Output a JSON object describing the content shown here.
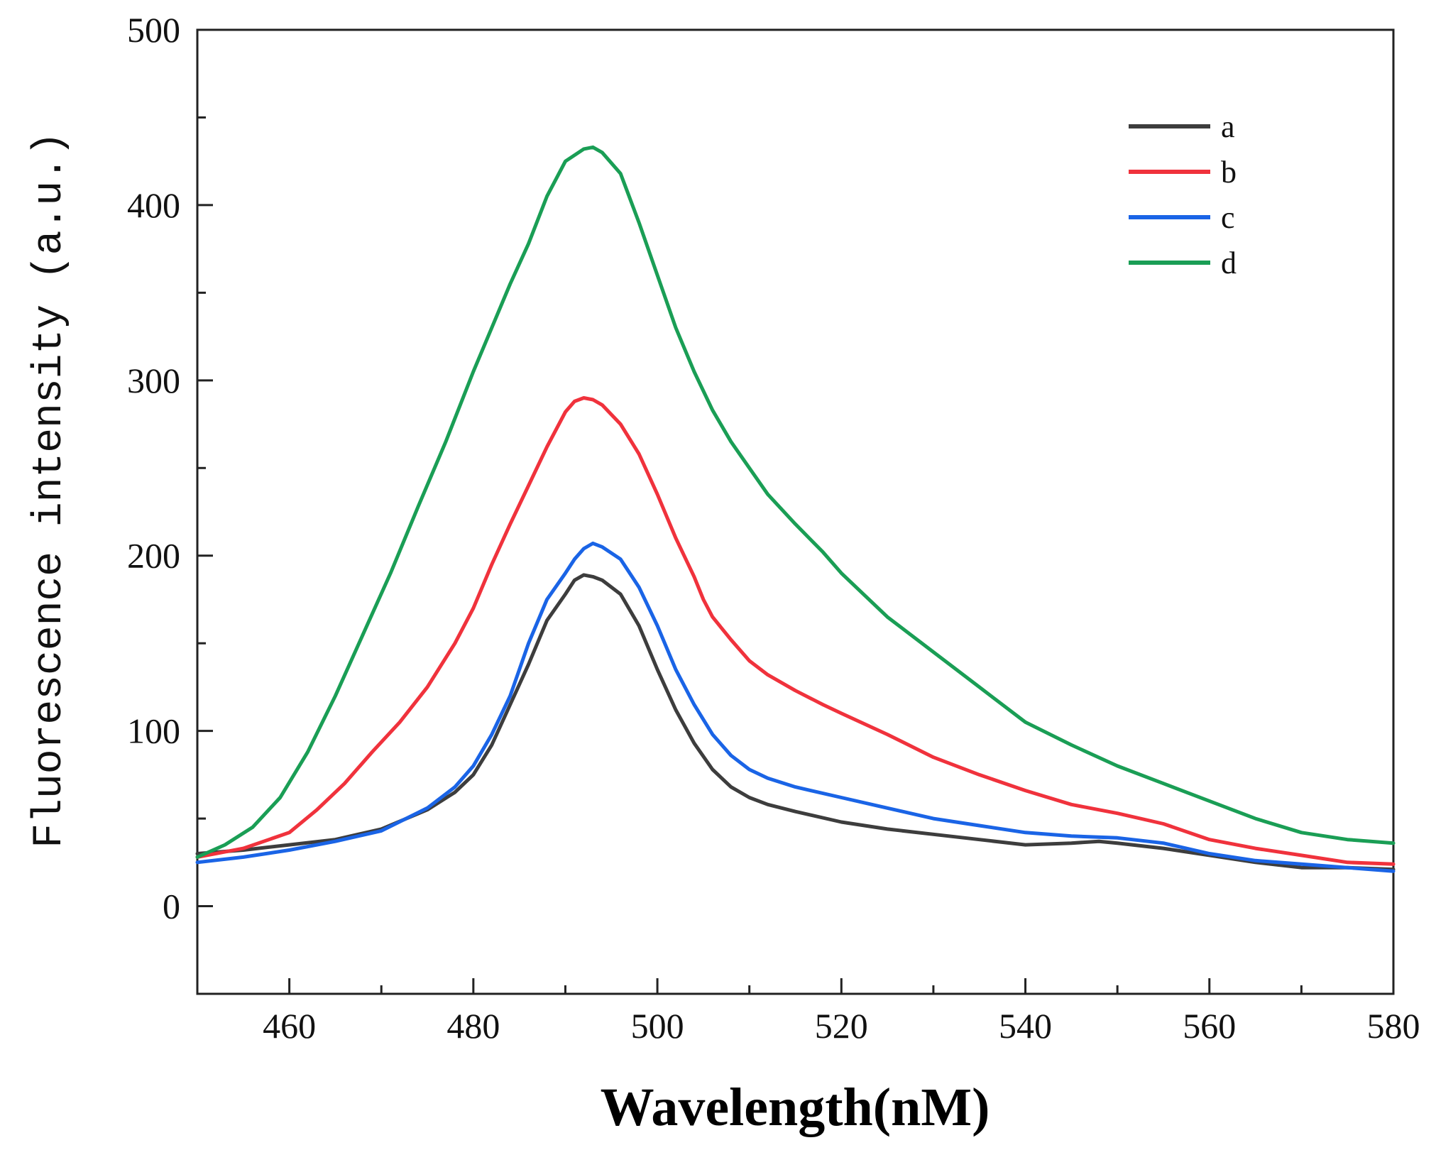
{
  "chart_data": {
    "type": "line",
    "title": "",
    "xlabel": "Wavelength(nM)",
    "ylabel": "Fluorescence intensity (a.u.)",
    "xlim": [
      450,
      580
    ],
    "ylim": [
      -50,
      500
    ],
    "xticks": [
      460,
      480,
      500,
      520,
      540,
      560,
      580
    ],
    "yticks": [
      0,
      100,
      200,
      300,
      400,
      500
    ],
    "grid": false,
    "legend_position": "top-right",
    "series": [
      {
        "name": "a",
        "color": "#3d3d3d",
        "points": [
          [
            450,
            30
          ],
          [
            455,
            32
          ],
          [
            460,
            35
          ],
          [
            465,
            38
          ],
          [
            470,
            44
          ],
          [
            475,
            55
          ],
          [
            478,
            65
          ],
          [
            480,
            75
          ],
          [
            482,
            92
          ],
          [
            484,
            115
          ],
          [
            486,
            138
          ],
          [
            488,
            163
          ],
          [
            490,
            178
          ],
          [
            491,
            186
          ],
          [
            492,
            189
          ],
          [
            493,
            188
          ],
          [
            494,
            186
          ],
          [
            496,
            178
          ],
          [
            498,
            160
          ],
          [
            500,
            135
          ],
          [
            502,
            112
          ],
          [
            504,
            93
          ],
          [
            506,
            78
          ],
          [
            508,
            68
          ],
          [
            510,
            62
          ],
          [
            512,
            58
          ],
          [
            515,
            54
          ],
          [
            520,
            48
          ],
          [
            525,
            44
          ],
          [
            530,
            41
          ],
          [
            535,
            38
          ],
          [
            540,
            35
          ],
          [
            545,
            36
          ],
          [
            548,
            37
          ],
          [
            550,
            36
          ],
          [
            555,
            33
          ],
          [
            560,
            29
          ],
          [
            565,
            25
          ],
          [
            570,
            22
          ],
          [
            575,
            22
          ],
          [
            580,
            21
          ]
        ]
      },
      {
        "name": "b",
        "color": "#f0323c",
        "points": [
          [
            450,
            28
          ],
          [
            455,
            33
          ],
          [
            460,
            42
          ],
          [
            463,
            55
          ],
          [
            466,
            70
          ],
          [
            469,
            88
          ],
          [
            472,
            105
          ],
          [
            475,
            125
          ],
          [
            478,
            150
          ],
          [
            480,
            170
          ],
          [
            482,
            195
          ],
          [
            484,
            218
          ],
          [
            486,
            240
          ],
          [
            488,
            262
          ],
          [
            490,
            282
          ],
          [
            491,
            288
          ],
          [
            492,
            290
          ],
          [
            493,
            289
          ],
          [
            494,
            286
          ],
          [
            496,
            275
          ],
          [
            498,
            258
          ],
          [
            500,
            235
          ],
          [
            502,
            210
          ],
          [
            504,
            188
          ],
          [
            505,
            175
          ],
          [
            506,
            165
          ],
          [
            508,
            152
          ],
          [
            510,
            140
          ],
          [
            512,
            132
          ],
          [
            515,
            123
          ],
          [
            518,
            115
          ],
          [
            520,
            110
          ],
          [
            525,
            98
          ],
          [
            530,
            85
          ],
          [
            535,
            75
          ],
          [
            540,
            66
          ],
          [
            545,
            58
          ],
          [
            550,
            53
          ],
          [
            555,
            47
          ],
          [
            560,
            38
          ],
          [
            565,
            33
          ],
          [
            570,
            29
          ],
          [
            575,
            25
          ],
          [
            580,
            24
          ]
        ]
      },
      {
        "name": "c",
        "color": "#1a64e6",
        "points": [
          [
            450,
            25
          ],
          [
            455,
            28
          ],
          [
            460,
            32
          ],
          [
            465,
            37
          ],
          [
            470,
            43
          ],
          [
            475,
            56
          ],
          [
            478,
            68
          ],
          [
            480,
            80
          ],
          [
            482,
            98
          ],
          [
            484,
            120
          ],
          [
            486,
            150
          ],
          [
            488,
            175
          ],
          [
            490,
            190
          ],
          [
            491,
            198
          ],
          [
            492,
            204
          ],
          [
            493,
            207
          ],
          [
            494,
            205
          ],
          [
            496,
            198
          ],
          [
            498,
            182
          ],
          [
            500,
            160
          ],
          [
            502,
            135
          ],
          [
            504,
            115
          ],
          [
            506,
            98
          ],
          [
            508,
            86
          ],
          [
            510,
            78
          ],
          [
            512,
            73
          ],
          [
            515,
            68
          ],
          [
            520,
            62
          ],
          [
            525,
            56
          ],
          [
            530,
            50
          ],
          [
            535,
            46
          ],
          [
            540,
            42
          ],
          [
            545,
            40
          ],
          [
            550,
            39
          ],
          [
            555,
            36
          ],
          [
            560,
            30
          ],
          [
            565,
            26
          ],
          [
            570,
            24
          ],
          [
            575,
            22
          ],
          [
            580,
            20
          ]
        ]
      },
      {
        "name": "d",
        "color": "#1a9e55",
        "points": [
          [
            450,
            28
          ],
          [
            453,
            35
          ],
          [
            456,
            45
          ],
          [
            459,
            62
          ],
          [
            462,
            88
          ],
          [
            465,
            120
          ],
          [
            468,
            155
          ],
          [
            471,
            190
          ],
          [
            474,
            228
          ],
          [
            477,
            265
          ],
          [
            480,
            305
          ],
          [
            482,
            330
          ],
          [
            484,
            355
          ],
          [
            486,
            378
          ],
          [
            488,
            405
          ],
          [
            490,
            425
          ],
          [
            492,
            432
          ],
          [
            493,
            433
          ],
          [
            494,
            430
          ],
          [
            496,
            418
          ],
          [
            498,
            390
          ],
          [
            500,
            360
          ],
          [
            502,
            330
          ],
          [
            504,
            305
          ],
          [
            506,
            283
          ],
          [
            508,
            265
          ],
          [
            510,
            250
          ],
          [
            512,
            235
          ],
          [
            515,
            218
          ],
          [
            518,
            202
          ],
          [
            520,
            190
          ],
          [
            525,
            165
          ],
          [
            530,
            145
          ],
          [
            535,
            125
          ],
          [
            540,
            105
          ],
          [
            545,
            92
          ],
          [
            550,
            80
          ],
          [
            555,
            70
          ],
          [
            560,
            60
          ],
          [
            565,
            50
          ],
          [
            570,
            42
          ],
          [
            575,
            38
          ],
          [
            580,
            36
          ]
        ]
      }
    ]
  }
}
